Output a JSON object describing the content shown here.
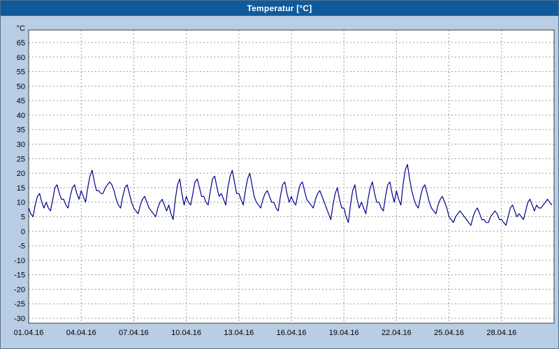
{
  "window": {
    "title": "Temperatur [°C]"
  },
  "colors": {
    "title_bar": "#0f5a9b",
    "title_text": "#ffffff",
    "background": "#b9cde4",
    "plot_bg": "#ffffff",
    "grid": "#9a9a9a",
    "axis": "#404040",
    "tick_text": "#000000",
    "line": "#00008b"
  },
  "chart_data": {
    "type": "line",
    "title": "Temperatur [°C]",
    "ylabel": "°C",
    "ylim": [
      -30,
      65
    ],
    "ytick_step": 5,
    "yticks": [
      65,
      60,
      55,
      50,
      45,
      40,
      35,
      30,
      25,
      20,
      15,
      10,
      5,
      0,
      -5,
      -10,
      -15,
      -20,
      -25,
      -30
    ],
    "x_tick_labels": [
      "01.04.16",
      "04.04.16",
      "07.04.16",
      "10.04.16",
      "13.04.16",
      "16.04.16",
      "19.04.16",
      "22.04.16",
      "25.04.16",
      "28.04.16"
    ],
    "x_tick_days": [
      0,
      3,
      6,
      9,
      12,
      15,
      18,
      21,
      24,
      27
    ],
    "days_total": 30,
    "samples_per_day": 8,
    "grid": "dashed",
    "legend": "none",
    "series": [
      {
        "name": "Temperatur",
        "color": "#00008b",
        "values": [
          8,
          6,
          5,
          9,
          12,
          13,
          10,
          8,
          10,
          8,
          7,
          11,
          15,
          16,
          13,
          11,
          11,
          9,
          8,
          12,
          15,
          16,
          13,
          11,
          14,
          12,
          10,
          15,
          19,
          21,
          17,
          14,
          14,
          13,
          13,
          15,
          16,
          17,
          16,
          14,
          11,
          9,
          8,
          12,
          15,
          16,
          13,
          10,
          8,
          7,
          6,
          9,
          11,
          12,
          10,
          8,
          7,
          6,
          5,
          8,
          10,
          11,
          9,
          7,
          9,
          6,
          4,
          11,
          16,
          18,
          13,
          9,
          12,
          10,
          9,
          13,
          17,
          18,
          15,
          12,
          12,
          10,
          9,
          14,
          18,
          19,
          15,
          12,
          13,
          11,
          9,
          15,
          19,
          21,
          17,
          13,
          13,
          11,
          9,
          14,
          18,
          20,
          16,
          12,
          10,
          9,
          8,
          11,
          13,
          14,
          12,
          10,
          10,
          8,
          7,
          12,
          16,
          17,
          13,
          10,
          12,
          10,
          9,
          13,
          16,
          17,
          14,
          11,
          10,
          9,
          8,
          11,
          13,
          14,
          12,
          10,
          8,
          6,
          4,
          9,
          13,
          15,
          11,
          8,
          8,
          5,
          3,
          9,
          14,
          16,
          11,
          8,
          10,
          8,
          6,
          11,
          15,
          17,
          13,
          10,
          10,
          8,
          7,
          12,
          16,
          17,
          13,
          10,
          14,
          11,
          9,
          16,
          21,
          23,
          18,
          14,
          11,
          9,
          8,
          12,
          15,
          16,
          13,
          10,
          8,
          7,
          6,
          9,
          11,
          12,
          10,
          8,
          5,
          4,
          3,
          5,
          6,
          7,
          6,
          5,
          4,
          3,
          2,
          5,
          7,
          8,
          6,
          4,
          4,
          3,
          3,
          5,
          6,
          7,
          6,
          4,
          4,
          3,
          2,
          5,
          8,
          9,
          7,
          5,
          6,
          5,
          4,
          7,
          10,
          11,
          9,
          7,
          9,
          8,
          8,
          9,
          10,
          11,
          10,
          9
        ]
      }
    ]
  }
}
